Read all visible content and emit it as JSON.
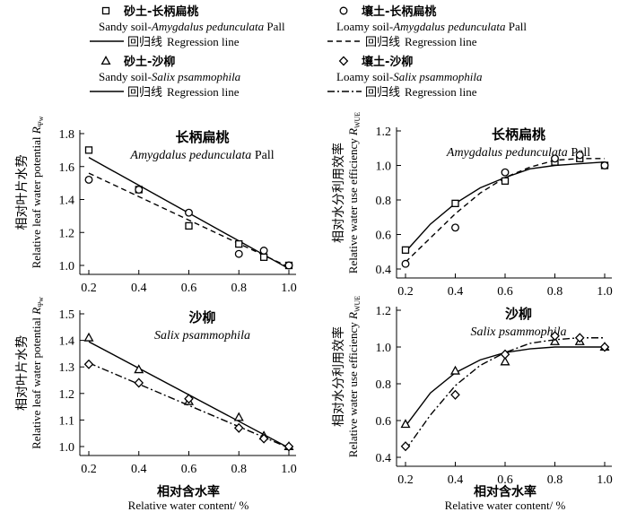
{
  "legend": {
    "entries": [
      {
        "id": "sandy-amygdalus",
        "marker": "square",
        "zh": "砂土-长柄扁桃",
        "en_prefix": "Sandy soil-",
        "en_italic": "Amygdalus pedunculata",
        "en_suffix": " Pall",
        "line_zh": "回归线",
        "line_en": "Regression line",
        "line_style": "solid"
      },
      {
        "id": "loamy-amygdalus",
        "marker": "circle",
        "zh": "壤土-长柄扁桃",
        "en_prefix": "Loamy soil-",
        "en_italic": "Amygdalus pedunculata",
        "en_suffix": " Pall",
        "line_zh": "回归线",
        "line_en": "Regression line",
        "line_style": "dashed"
      },
      {
        "id": "sandy-salix",
        "marker": "triangle",
        "zh": "砂土-沙柳",
        "en_prefix": "Sandy soil-",
        "en_italic": "Salix psammophila",
        "en_suffix": "",
        "line_zh": "回归线",
        "line_en": "Regression line",
        "line_style": "solid"
      },
      {
        "id": "loamy-salix",
        "marker": "diamond",
        "zh": "壤土-沙柳",
        "en_prefix": "Loamy soil-",
        "en_italic": "Salix psammophila",
        "en_suffix": "",
        "line_zh": "回归线",
        "line_en": "Regression line",
        "line_style": "dashdot"
      }
    ]
  },
  "x_axis_common": {
    "label_zh": "相对含水率",
    "label_en": "Relative water content/ %"
  },
  "chart_data": [
    {
      "id": "amygdalus-rpw",
      "type": "scatter",
      "title_zh": "长柄扁桃",
      "title_en": "Amygdalus pedunculata",
      "title_suffix": " Pall",
      "ylabel_zh": "相对叶片水势",
      "ylabel_en": "Relative leaf water potential",
      "ysym": "R",
      "ysub": "Ψw",
      "xlim": [
        0.2,
        1.0
      ],
      "ylim": [
        1.0,
        1.8
      ],
      "xticks": [
        "0.2",
        "0.4",
        "0.6",
        "0.8",
        "1.0"
      ],
      "yticks": [
        "1.0",
        "1.2",
        "1.4",
        "1.6",
        "1.8"
      ],
      "series": [
        {
          "name": "Sandy soil-Amygdalus pedunculata Pall",
          "marker": "square",
          "x": [
            0.2,
            0.4,
            0.6,
            0.8,
            0.9,
            1.0
          ],
          "y": [
            1.7,
            1.46,
            1.24,
            1.13,
            1.05,
            1.0
          ],
          "fit": "linear",
          "line": "solid",
          "fit_x": [
            0.2,
            1.0
          ],
          "fit_y": [
            1.655,
            0.98
          ]
        },
        {
          "name": "Loamy soil-Amygdalus pedunculata Pall",
          "marker": "circle",
          "x": [
            0.2,
            0.4,
            0.6,
            0.8,
            0.9,
            1.0
          ],
          "y": [
            1.52,
            1.46,
            1.32,
            1.07,
            1.09,
            1.0
          ],
          "fit": "linear",
          "line": "dashed",
          "fit_x": [
            0.2,
            1.0
          ],
          "fit_y": [
            1.56,
            0.99
          ]
        }
      ]
    },
    {
      "id": "amygdalus-rwue",
      "type": "scatter",
      "title_zh": "长柄扁桃",
      "title_en": "Amygdalus pedunculata",
      "title_suffix": " Pall",
      "ylabel_zh": "相对水分利用效率",
      "ylabel_en": "Relative water use efficiency",
      "ysym": "R",
      "ysub": "WUE",
      "xlim": [
        0.2,
        1.0
      ],
      "ylim": [
        0.4,
        1.2
      ],
      "xticks": [
        "0.2",
        "0.4",
        "0.6",
        "0.8",
        "1.0"
      ],
      "yticks": [
        "0.4",
        "0.6",
        "0.8",
        "1.0",
        "1.2"
      ],
      "series": [
        {
          "name": "Sandy soil-Amygdalus pedunculata Pall",
          "marker": "square",
          "x": [
            0.2,
            0.4,
            0.6,
            0.8,
            0.9,
            1.0
          ],
          "y": [
            0.51,
            0.78,
            0.91,
            1.02,
            1.04,
            1.0
          ],
          "fit": "curve",
          "line": "solid",
          "fit_x": [
            0.2,
            0.3,
            0.4,
            0.5,
            0.6,
            0.7,
            0.8,
            0.9,
            1.0
          ],
          "fit_y": [
            0.5,
            0.66,
            0.78,
            0.87,
            0.93,
            0.98,
            1.0,
            1.01,
            1.02
          ]
        },
        {
          "name": "Loamy soil-Amygdalus pedunculata Pall",
          "marker": "circle",
          "x": [
            0.2,
            0.4,
            0.6,
            0.8,
            0.9,
            1.0
          ],
          "y": [
            0.43,
            0.64,
            0.96,
            1.04,
            1.06,
            1.0
          ],
          "fit": "curve",
          "line": "dashed",
          "fit_x": [
            0.2,
            0.3,
            0.4,
            0.5,
            0.6,
            0.7,
            0.8,
            0.9,
            1.0
          ],
          "fit_y": [
            0.44,
            0.58,
            0.72,
            0.84,
            0.93,
            0.99,
            1.03,
            1.04,
            1.04
          ]
        }
      ]
    },
    {
      "id": "salix-rpw",
      "type": "scatter",
      "title_zh": "沙柳",
      "title_en": "Salix psammophila",
      "title_suffix": "",
      "ylabel_zh": "相对叶片水势",
      "ylabel_en": "Relative leaf water potential",
      "ysym": "R",
      "ysub": "Ψw",
      "xlim": [
        0.2,
        1.0
      ],
      "ylim": [
        1.0,
        1.5
      ],
      "xticks": [
        "0.2",
        "0.4",
        "0.6",
        "0.8",
        "1.0"
      ],
      "yticks": [
        "1.0",
        "1.1",
        "1.2",
        "1.3",
        "1.4",
        "1.5"
      ],
      "series": [
        {
          "name": "Sandy soil-Salix psammophila",
          "marker": "triangle",
          "x": [
            0.2,
            0.4,
            0.6,
            0.8,
            0.9,
            1.0
          ],
          "y": [
            1.41,
            1.29,
            1.17,
            1.11,
            1.04,
            1.0
          ],
          "fit": "linear",
          "line": "solid",
          "fit_x": [
            0.2,
            1.0
          ],
          "fit_y": [
            1.395,
            0.995
          ]
        },
        {
          "name": "Loamy soil-Salix psammophila",
          "marker": "diamond",
          "x": [
            0.2,
            0.4,
            0.6,
            0.8,
            0.9,
            1.0
          ],
          "y": [
            1.31,
            1.24,
            1.18,
            1.07,
            1.03,
            1.0
          ],
          "fit": "linear",
          "line": "dashdot",
          "fit_x": [
            0.2,
            1.0
          ],
          "fit_y": [
            1.315,
            0.995
          ]
        }
      ]
    },
    {
      "id": "salix-rwue",
      "type": "scatter",
      "title_zh": "沙柳",
      "title_en": "Salix psammophila",
      "title_suffix": "",
      "ylabel_zh": "相对水分利用效率",
      "ylabel_en": "Relative water use efficiency",
      "ysym": "R",
      "ysub": "WUE",
      "xlim": [
        0.2,
        1.0
      ],
      "ylim": [
        0.4,
        1.2
      ],
      "xticks": [
        "0.2",
        "0.4",
        "0.6",
        "0.8",
        "1.0"
      ],
      "yticks": [
        "0.4",
        "0.6",
        "0.8",
        "1.0",
        "1.2"
      ],
      "series": [
        {
          "name": "Sandy soil-Salix psammophila",
          "marker": "triangle",
          "x": [
            0.2,
            0.4,
            0.6,
            0.8,
            0.9,
            1.0
          ],
          "y": [
            0.58,
            0.87,
            0.92,
            1.03,
            1.03,
            1.0
          ],
          "fit": "curve",
          "line": "solid",
          "fit_x": [
            0.2,
            0.3,
            0.4,
            0.5,
            0.6,
            0.7,
            0.8,
            0.9,
            1.0
          ],
          "fit_y": [
            0.57,
            0.75,
            0.86,
            0.93,
            0.97,
            0.99,
            1.0,
            1.0,
            1.0
          ]
        },
        {
          "name": "Loamy soil-Salix psammophila",
          "marker": "diamond",
          "x": [
            0.2,
            0.4,
            0.6,
            0.8,
            0.9,
            1.0
          ],
          "y": [
            0.46,
            0.74,
            0.96,
            1.06,
            1.05,
            1.0
          ],
          "fit": "curve",
          "line": "dashdot",
          "fit_x": [
            0.2,
            0.3,
            0.4,
            0.5,
            0.6,
            0.7,
            0.8,
            0.9,
            1.0
          ],
          "fit_y": [
            0.44,
            0.63,
            0.79,
            0.9,
            0.97,
            1.02,
            1.04,
            1.05,
            1.05
          ]
        }
      ]
    }
  ]
}
